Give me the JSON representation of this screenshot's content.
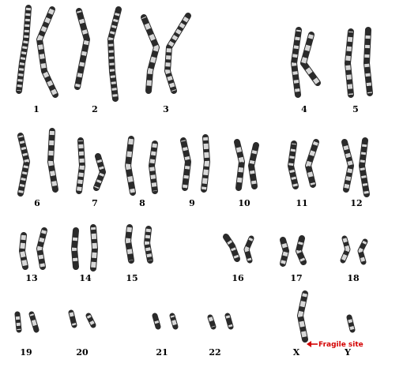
{
  "chromosome_labels": [
    "1",
    "2",
    "3",
    "4",
    "5",
    "6",
    "7",
    "8",
    "9",
    "10",
    "11",
    "12",
    "13",
    "14",
    "15",
    "16",
    "17",
    "18",
    "19",
    "20",
    "21",
    "22",
    "X",
    "Y"
  ],
  "annotation": {
    "text": "Fragile site",
    "color": "#d40000"
  },
  "colors": {
    "chromatid": "#2a2a2a",
    "band_light": "#d8d8d8",
    "background": "#ffffff"
  }
}
